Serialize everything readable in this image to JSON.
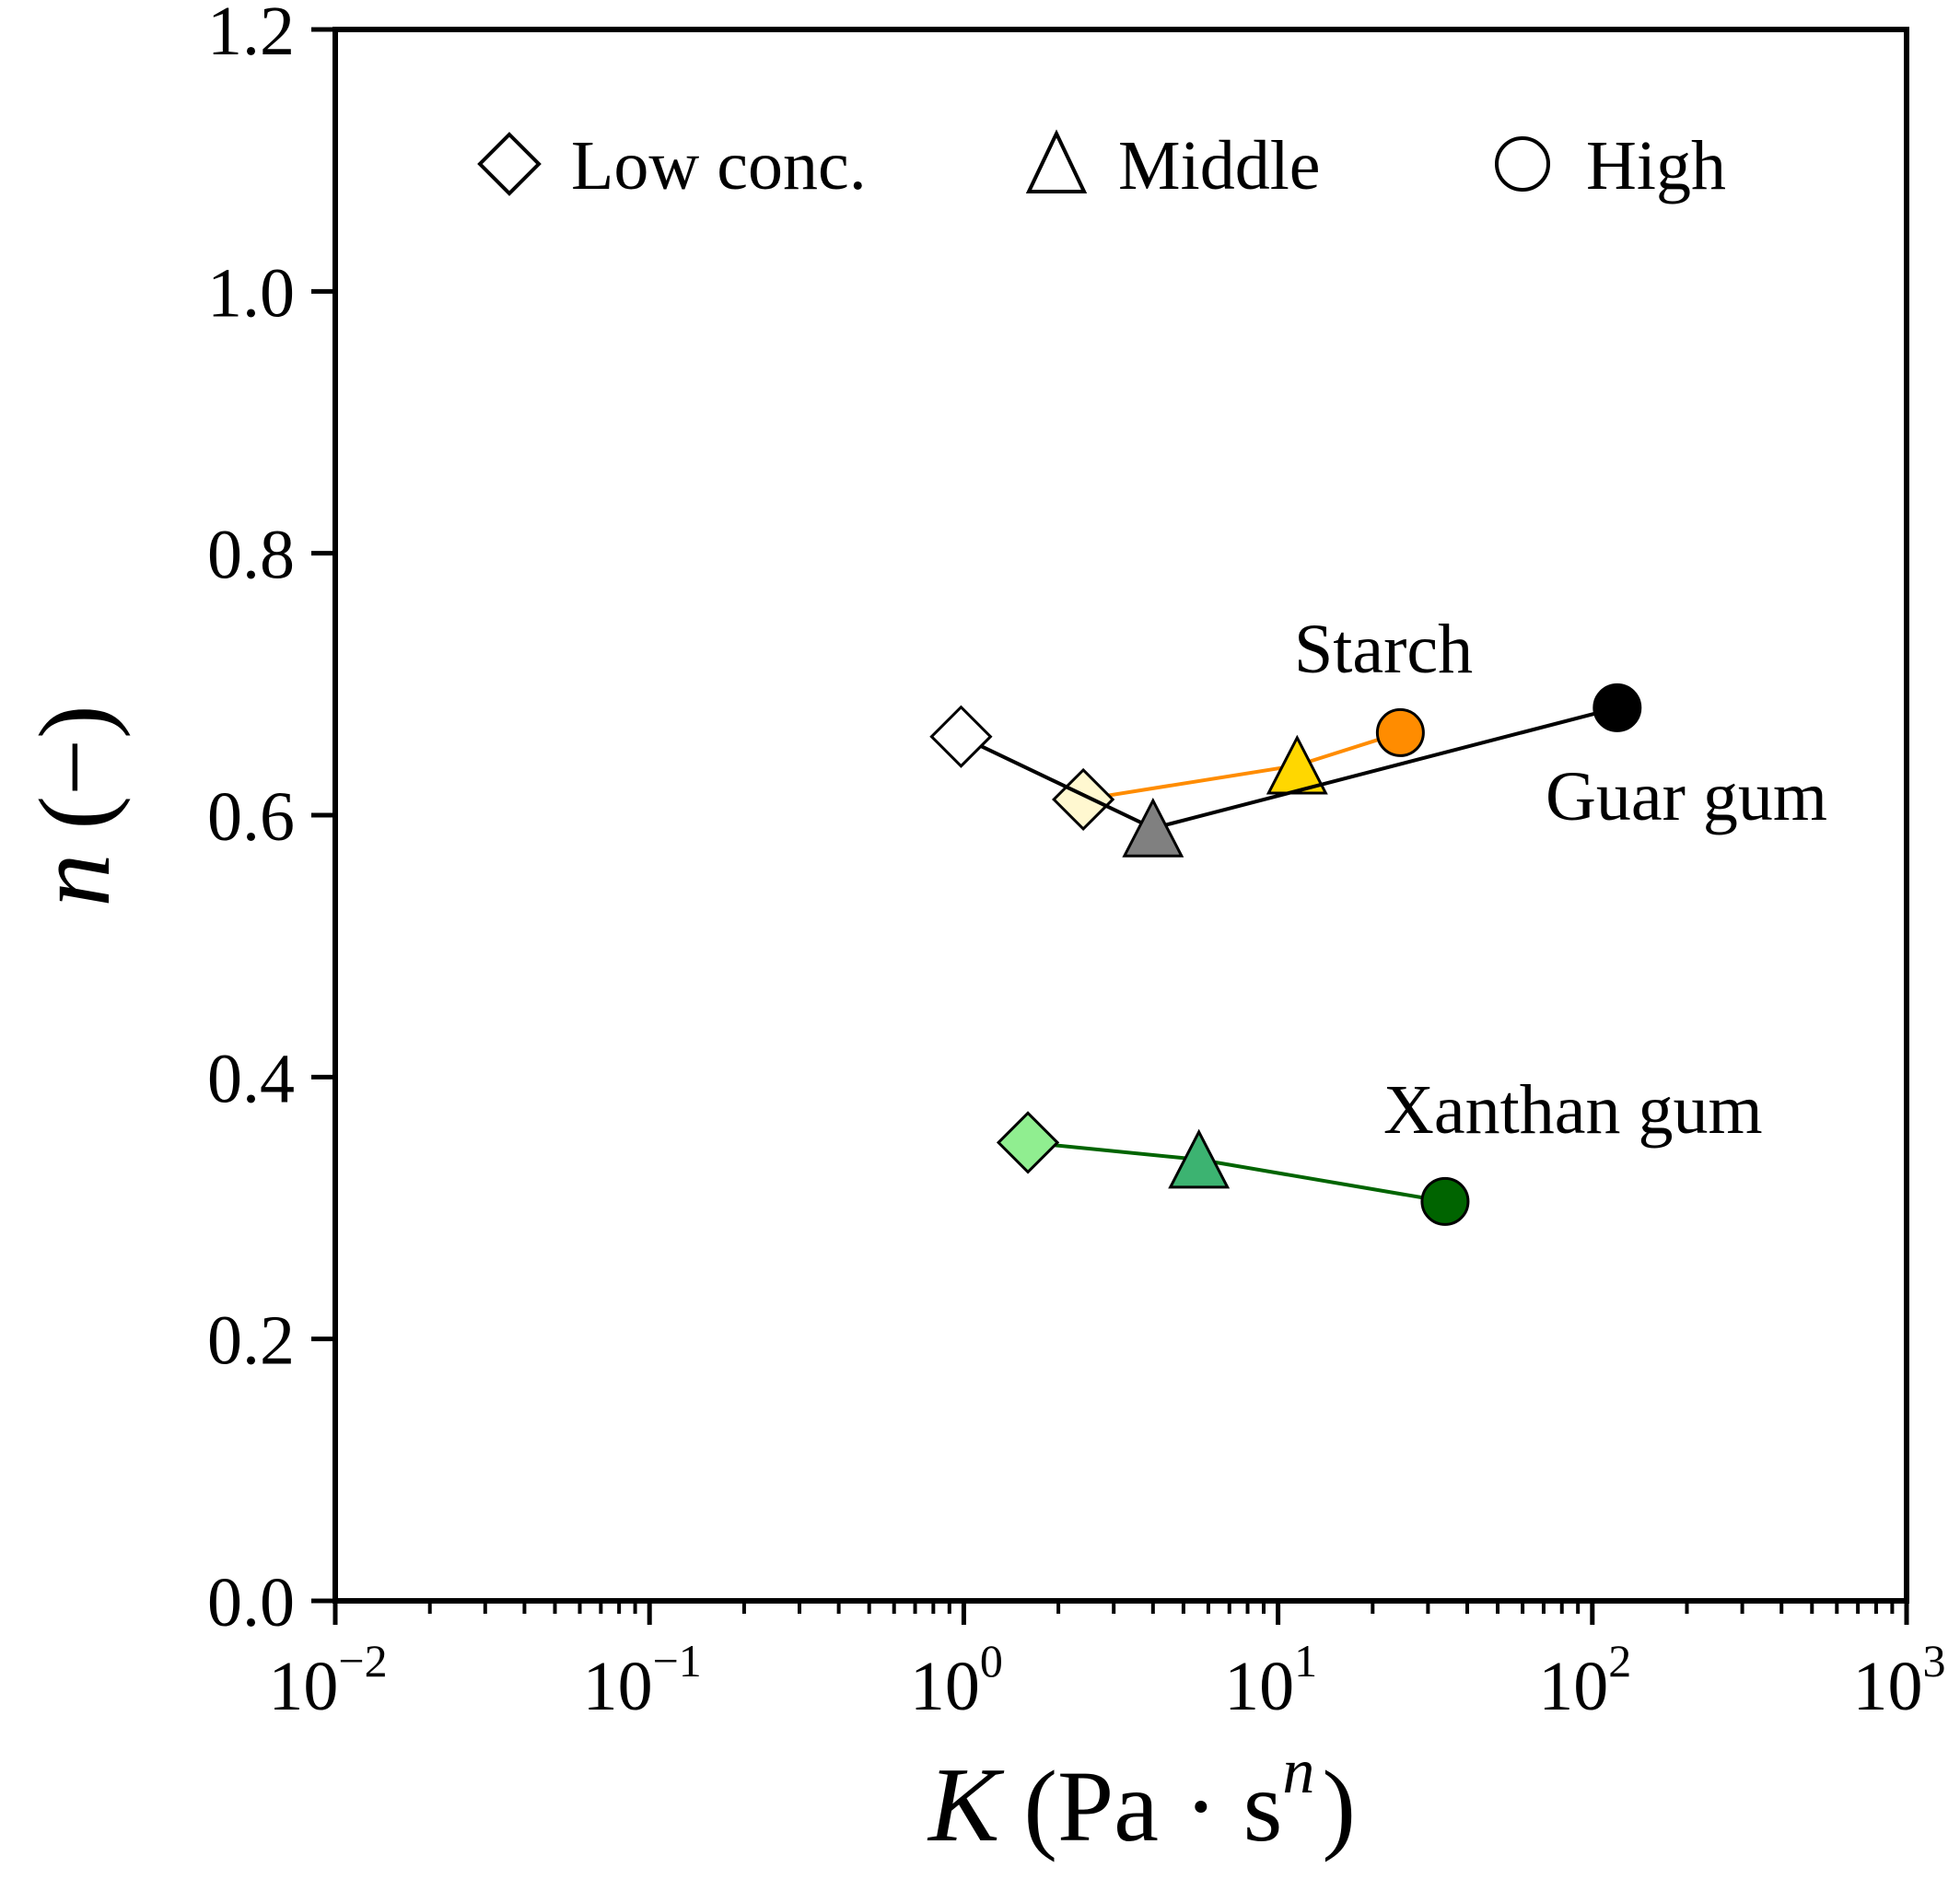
{
  "chart_data": {
    "type": "scatter",
    "title": "",
    "xlabel": "K (Pa · s^n)",
    "xlabel_parts": {
      "symbol": "K",
      "open": "(",
      "unit": "Pa · s",
      "exponent": "n",
      "close": ")"
    },
    "ylabel": "n (−)",
    "ylabel_parts": {
      "symbol": "n",
      "unit": "(−)"
    },
    "xscale": "log",
    "xlim": [
      0.01,
      1000
    ],
    "ylim": [
      0.0,
      1.2
    ],
    "grid": false,
    "legend_position": "top",
    "x_ticks": [
      {
        "value": 0.01,
        "base": "10",
        "exp": "−2"
      },
      {
        "value": 0.1,
        "base": "10",
        "exp": "−1"
      },
      {
        "value": 1,
        "base": "10",
        "exp": "0"
      },
      {
        "value": 10,
        "base": "10",
        "exp": "1"
      },
      {
        "value": 100,
        "base": "10",
        "exp": "2"
      },
      {
        "value": 1000,
        "base": "10",
        "exp": "3"
      }
    ],
    "y_ticks": [
      "0.0",
      "0.2",
      "0.4",
      "0.6",
      "0.8",
      "1.0",
      "1.2"
    ],
    "legend": [
      {
        "label": "Low conc.",
        "marker": "diamond"
      },
      {
        "label": "Middle",
        "marker": "triangle"
      },
      {
        "label": "High",
        "marker": "circle"
      }
    ],
    "series": [
      {
        "name": "Starch",
        "line_color": "#ff8c00",
        "points": [
          {
            "x": 2.4,
            "y": 0.612,
            "marker": "diamond",
            "fill": "#fff8d0"
          },
          {
            "x": 11.5,
            "y": 0.638,
            "marker": "triangle",
            "fill": "#ffd700"
          },
          {
            "x": 24.5,
            "y": 0.663,
            "marker": "circle",
            "fill": "#ff8c00"
          }
        ]
      },
      {
        "name": "Guar gum",
        "line_color": "#000000",
        "points": [
          {
            "x": 0.98,
            "y": 0.66,
            "marker": "diamond",
            "fill": "#ffffff"
          },
          {
            "x": 4.0,
            "y": 0.59,
            "marker": "triangle",
            "fill": "#808080"
          },
          {
            "x": 120,
            "y": 0.682,
            "marker": "circle",
            "fill": "#000000"
          }
        ]
      },
      {
        "name": "Xanthan gum",
        "line_color": "#006400",
        "points": [
          {
            "x": 1.6,
            "y": 0.35,
            "marker": "diamond",
            "fill": "#90ee90"
          },
          {
            "x": 5.6,
            "y": 0.337,
            "marker": "triangle",
            "fill": "#3cb371"
          },
          {
            "x": 34,
            "y": 0.305,
            "marker": "circle",
            "fill": "#006400"
          }
        ]
      }
    ],
    "annotations": [
      {
        "text": "Starch",
        "series": "Starch"
      },
      {
        "text": "Guar gum",
        "series": "Guar gum"
      },
      {
        "text": "Xanthan gum",
        "series": "Xanthan gum"
      }
    ]
  }
}
